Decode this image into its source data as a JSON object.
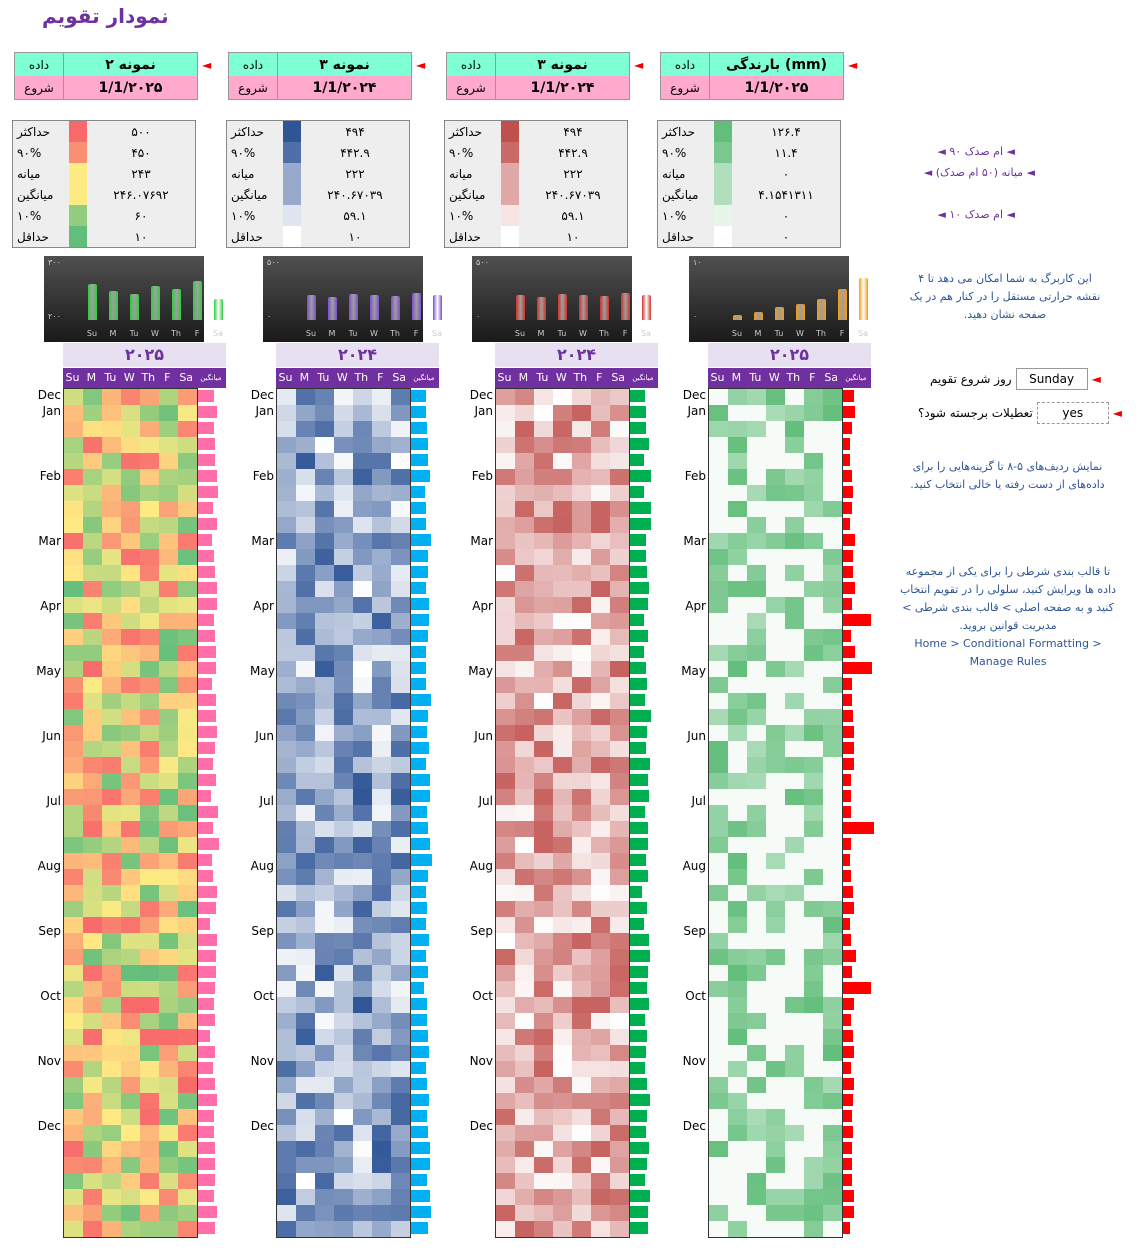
{
  "title": "نمودار تقویم",
  "labels": {
    "data": "داده",
    "start": "شروع"
  },
  "panels": [
    {
      "name": "نمونه ۲",
      "start": "1/1/۲۰۲۵",
      "year": "۲۰۲۵",
      "stats": [
        [
          "حداکثر",
          "۵۰۰"
        ],
        [
          "۹۰%",
          "۴۵۰"
        ],
        [
          "میانه",
          "۲۴۳"
        ],
        [
          "میانگین",
          "۲۴۶.۰۷۶۹۲"
        ],
        [
          "۱۰%",
          "۶۰"
        ],
        [
          "حداقل",
          "۱۰"
        ]
      ],
      "ytop": "۳۰۰",
      "ybot": "۲۰۰",
      "bars": [
        0.7,
        0.55,
        0.5,
        0.65,
        0.6,
        0.75,
        0.4
      ]
    },
    {
      "name": "نمونه ۳",
      "start": "1/1/۲۰۲۴",
      "year": "۲۰۲۴",
      "stats": [
        [
          "حداکثر",
          "۴۹۴"
        ],
        [
          "۹۰%",
          "۴۴۲.۹"
        ],
        [
          "میانه",
          "۲۲۲"
        ],
        [
          "میانگین",
          "۲۴۰.۶۷۰۳۹"
        ],
        [
          "۱۰%",
          "۵۹.۱"
        ],
        [
          "حداقل",
          "۱۰"
        ]
      ],
      "ytop": "۵۰۰",
      "ybot": "۰",
      "bars": [
        0.48,
        0.45,
        0.5,
        0.48,
        0.46,
        0.52,
        0.48
      ]
    },
    {
      "name": "نمونه ۳",
      "start": "1/1/۲۰۲۴",
      "year": "۲۰۲۴",
      "stats": [
        [
          "حداکثر",
          "۴۹۴"
        ],
        [
          "۹۰%",
          "۴۴۲.۹"
        ],
        [
          "میانه",
          "۲۲۲"
        ],
        [
          "میانگین",
          "۲۴۰.۶۷۰۳۹"
        ],
        [
          "۱۰%",
          "۵۹.۱"
        ],
        [
          "حداقل",
          "۱۰"
        ]
      ],
      "ytop": "۵۰۰",
      "ybot": "۰",
      "bars": [
        0.48,
        0.45,
        0.5,
        0.48,
        0.46,
        0.52,
        0.48
      ]
    },
    {
      "name": "بارندگی (mm)",
      "start": "1/1/۲۰۲۵",
      "year": "۲۰۲۵",
      "stats": [
        [
          "حداکثر",
          "۱۲۶.۴"
        ],
        [
          "۹۰%",
          "۱۱.۴"
        ],
        [
          "میانه",
          "۰"
        ],
        [
          "میانگین",
          "۴.۱۵۴۱۳۱۱"
        ],
        [
          "۱۰%",
          "۰"
        ],
        [
          "حداقل",
          "۰"
        ]
      ],
      "ytop": "۱۰",
      "ybot": "۰",
      "bars": [
        0.1,
        0.15,
        0.25,
        0.3,
        0.4,
        0.6,
        0.8
      ]
    }
  ],
  "days": [
    "Su",
    "M",
    "Tu",
    "W",
    "Th",
    "F",
    "Sa"
  ],
  "avg_header": "میانگین",
  "months": [
    "Dec",
    "Jan",
    "Feb",
    "Mar",
    "Apr",
    "May",
    "Jun",
    "Jul",
    "Aug",
    "Sep",
    "Oct",
    "Nov",
    "Dec"
  ],
  "side_labels": [
    "◄ ۹۰ ام صدک ◄",
    "◄ میانه (۵۰ ام صدک) ◄",
    "◄ ۱۰ ام صدک ◄"
  ],
  "note1": "این کاربرگ به شما امکان می دهد تا ۴ نقشه حرارتی مستقل را در کنار هم در یک صفحه نشان دهید.",
  "week_start_label": "روز شروع تقویم",
  "week_start_value": "Sunday",
  "holidays_label": "تعطیلات برجسته شود؟",
  "holidays_value": "yes",
  "note2": "نمایش ردیف‌های ۵-۸ تا گزینه‌هایی را برای داده‌های از دست رفته یا خالی انتخاب کنید.",
  "note3": "تا قالب بندی شرطی را برای یکی از مجموعه داده ها ویرایش کنید، سلولی را در تقویم انتخاب کنید و به صفحه اصلی > قالب بندی شرطی > مدیریت قوانین بروید.",
  "note3_en": "Home > Conditional Formatting > Manage Rules",
  "colors": {
    "panel0": [
      "#F8696B",
      "#FFEB84",
      "#63BE7B"
    ],
    "panel1": "#2F5597",
    "panel2": "#C0504D",
    "panel3": "#63BE7B",
    "bars0": "#2ECC40",
    "bars1": "#7B4FD0",
    "bars2": "#D0312D",
    "bars3": "#F39C12",
    "avg0": "#FF6EAA",
    "avg1": "#00B0F0",
    "avg2": "#00B050",
    "avg3": "#FF0000"
  }
}
